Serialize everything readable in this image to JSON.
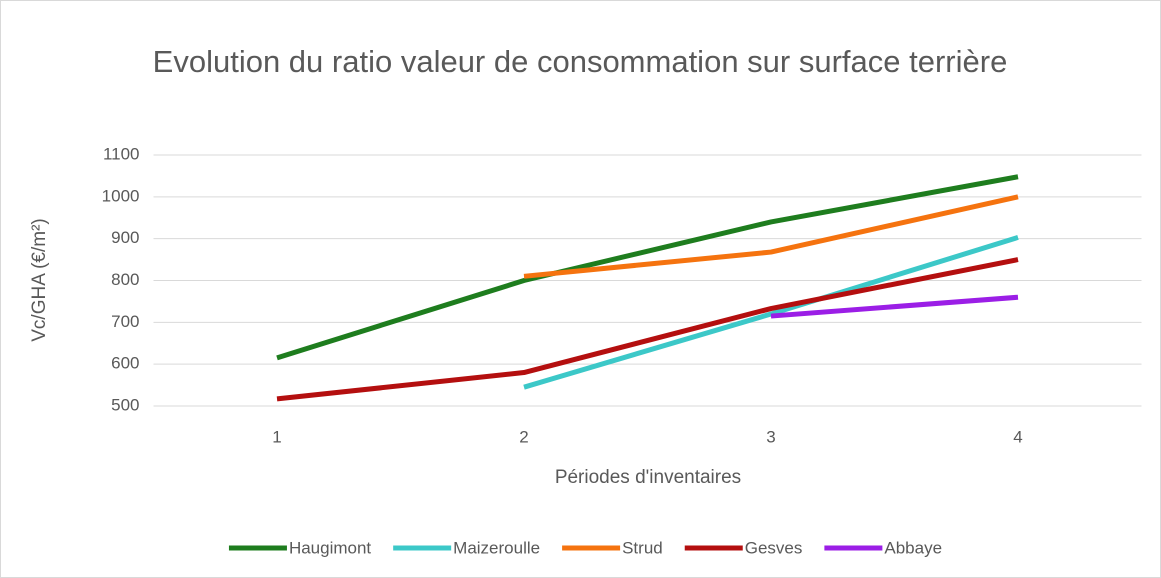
{
  "chart_data": {
    "type": "line",
    "title": "Evolution du ratio valeur de consommation sur surface terrière",
    "x_label": "Périodes d'inventaires",
    "y_label": "Vc/GHA (€/m²)",
    "categories": [
      "1",
      "2",
      "3",
      "4"
    ],
    "series": [
      {
        "name": "Haugimont",
        "color": "#1e7d1e",
        "values": [
          615,
          800,
          940,
          1048
        ]
      },
      {
        "name": "Maizeroulle",
        "color": "#3cc8c8",
        "values": [
          null,
          545,
          720,
          903
        ]
      },
      {
        "name": "Strud",
        "color": "#f5730f",
        "values": [
          null,
          810,
          868,
          1000
        ]
      },
      {
        "name": "Gesves",
        "color": "#b40f0f",
        "values": [
          517,
          580,
          733,
          850
        ]
      },
      {
        "name": "Abbaye",
        "color": "#9b1ee6",
        "values": [
          null,
          null,
          715,
          760
        ]
      }
    ],
    "ylim": [
      500,
      1100
    ],
    "yticks": [
      500,
      600,
      700,
      800,
      900,
      1000,
      1100
    ],
    "grid": true,
    "legend": "bottom"
  }
}
